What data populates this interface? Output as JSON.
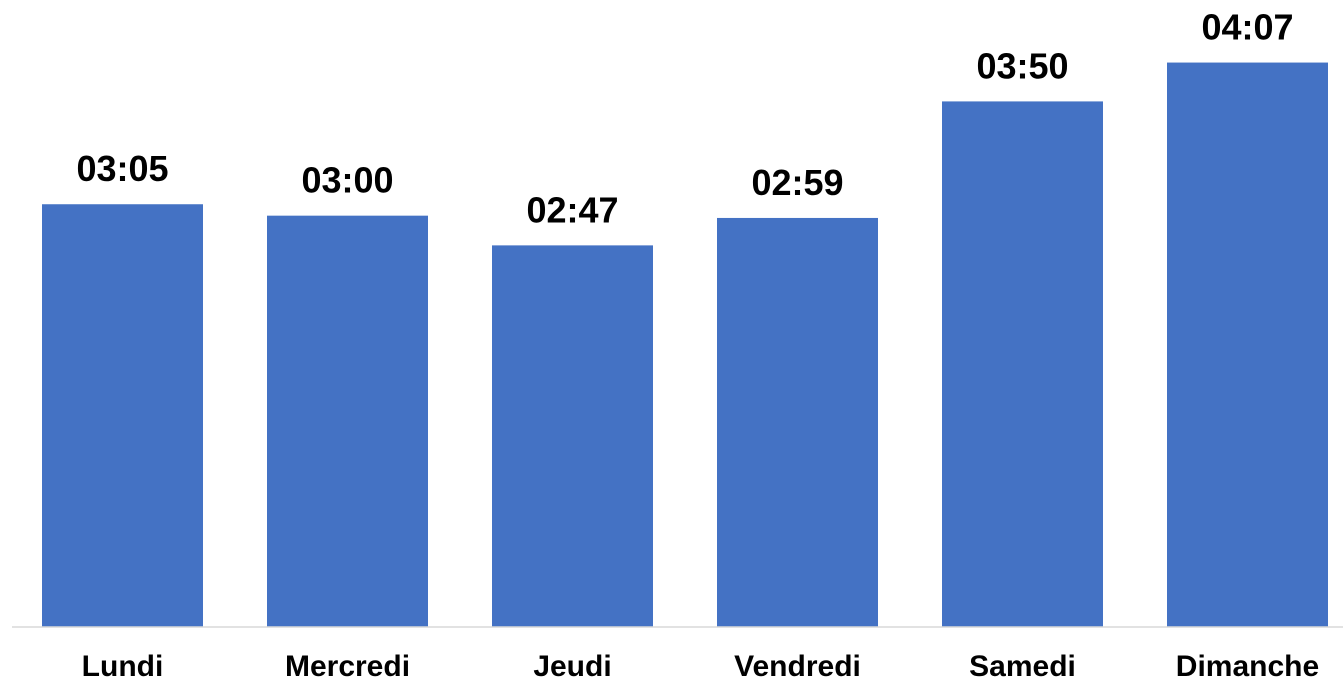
{
  "chart_data": {
    "type": "bar",
    "title": "",
    "xlabel": "",
    "ylabel": "",
    "categories": [
      "Lundi",
      "Mercredi",
      "Jeudi",
      "Vendredi",
      "Samedi",
      "Dimanche"
    ],
    "values_minutes": [
      185,
      180,
      167,
      179,
      230,
      247
    ],
    "value_labels": [
      "03:05",
      "03:00",
      "02:47",
      "02:59",
      "03:50",
      "04:07"
    ],
    "ylim_minutes": [
      0,
      270
    ],
    "grid": false,
    "legend": "none",
    "colors": {
      "bar": "#4472C4",
      "axis": "#D9D9D9",
      "text": "#000000"
    }
  }
}
